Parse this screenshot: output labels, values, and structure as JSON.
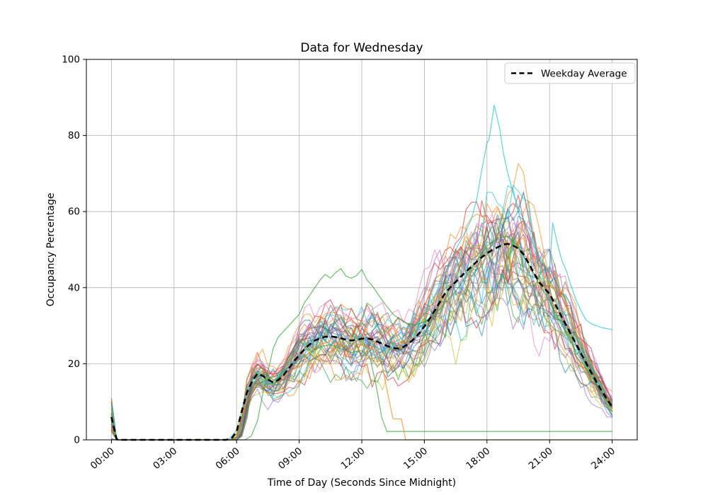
{
  "figure": {
    "title": "Data for Wednesday",
    "xlabel": "Time of Day (Seconds Since Midnight)",
    "ylabel": "Occupancy Percentage",
    "legend_label": "Weekday Average",
    "background_color": "#ffffff",
    "grid_color": "#b0b0b0",
    "spine_color": "#000000",
    "text_color": "#000000"
  },
  "chart_data": {
    "type": "line",
    "title": "Data for Wednesday",
    "xlabel": "Time of Day (Seconds Since Midnight)",
    "ylabel": "Occupancy Percentage",
    "ylim": [
      0,
      100
    ],
    "xlim_hours": [
      -1.2,
      25.2
    ],
    "grid": true,
    "legend_position": "upper right",
    "x_tick_hours": [
      0,
      3,
      6,
      9,
      12,
      15,
      18,
      21,
      24
    ],
    "x_tick_labels": [
      "00:00",
      "03:00",
      "06:00",
      "09:00",
      "12:00",
      "15:00",
      "18:00",
      "21:00",
      "24:00"
    ],
    "y_ticks": [
      0,
      20,
      40,
      60,
      80,
      100
    ],
    "sample_interval_hours": 0.25,
    "average_series": {
      "name": "Weekday Average",
      "color": "#000000",
      "linestyle": "dashed",
      "linewidth": 2.6,
      "values": [
        6.0,
        0.2,
        0,
        0,
        0,
        0,
        0,
        0,
        0,
        0,
        0,
        0,
        0,
        0,
        0,
        0,
        0,
        0,
        0,
        0,
        0,
        0,
        0,
        0.3,
        2.2,
        7.5,
        12.5,
        15.5,
        17.4,
        16.8,
        15.8,
        15.1,
        15.7,
        17.0,
        18.8,
        20.6,
        22.3,
        23.8,
        25.1,
        26.1,
        26.7,
        27.1,
        27.2,
        27.0,
        26.7,
        26.3,
        26.1,
        26.3,
        26.6,
        26.7,
        26.4,
        25.8,
        25.2,
        24.6,
        24.1,
        24.0,
        24.4,
        25.3,
        26.5,
        28.0,
        29.8,
        31.8,
        34.0,
        36.3,
        38.6,
        40.1,
        41.5,
        42.9,
        44.2,
        45.5,
        46.8,
        48.0,
        49.0,
        49.9,
        50.6,
        51.3,
        51.5,
        51.1,
        50.3,
        48.8,
        46.4,
        43.8,
        41.5,
        39.8,
        38.4,
        35.8,
        33.2,
        30.6,
        28.0,
        25.4,
        22.8,
        20.2,
        17.6,
        15.2,
        12.9,
        10.7,
        8.6
      ]
    },
    "individual_series_style": {
      "alpha": 0.55,
      "width": 1.3
    },
    "generated_series": {
      "count": 42,
      "seed": 11,
      "scale_range": [
        0.78,
        1.22
      ],
      "noise": 1.0,
      "start_spike_max": 11
    },
    "special_series": [
      {
        "name": "midday-peak-45",
        "color": "#2ca02c",
        "keyframes": [
          [
            0,
            7
          ],
          [
            0.25,
            0
          ],
          [
            6.4,
            0
          ],
          [
            6.7,
            1
          ],
          [
            7,
            5
          ],
          [
            7.25,
            12
          ],
          [
            7.5,
            18
          ],
          [
            7.75,
            24
          ],
          [
            8,
            27
          ],
          [
            8.25,
            28.5
          ],
          [
            8.5,
            30
          ],
          [
            9,
            33
          ],
          [
            9.25,
            36
          ],
          [
            9.5,
            38
          ],
          [
            9.75,
            40
          ],
          [
            10,
            42
          ],
          [
            10.25,
            43.5
          ],
          [
            10.5,
            42.5
          ],
          [
            10.75,
            44
          ],
          [
            11,
            45
          ],
          [
            11.25,
            43
          ],
          [
            11.5,
            42.5
          ],
          [
            11.75,
            43.2
          ],
          [
            12,
            44.8
          ],
          [
            12.25,
            42
          ],
          [
            12.5,
            40.5
          ],
          [
            12.75,
            38.5
          ],
          [
            13,
            36.5
          ],
          [
            13.5,
            33
          ],
          [
            14,
            31
          ],
          [
            14.5,
            30
          ],
          [
            15,
            31
          ],
          [
            15.5,
            33
          ],
          [
            16,
            36
          ],
          [
            16.5,
            39
          ],
          [
            17,
            43
          ],
          [
            17.5,
            47
          ],
          [
            18,
            51
          ],
          [
            18.5,
            53
          ],
          [
            19,
            53.5
          ],
          [
            19.5,
            50.5
          ],
          [
            20,
            46
          ],
          [
            20.5,
            41
          ],
          [
            21,
            36.5
          ],
          [
            21.5,
            31
          ],
          [
            22,
            26
          ],
          [
            22.5,
            21
          ],
          [
            23,
            16.5
          ],
          [
            23.5,
            12.5
          ],
          [
            24,
            9.5
          ]
        ]
      },
      {
        "name": "dropout-flat-2",
        "color": "#2ca02c",
        "keyframes": [
          [
            0,
            5
          ],
          [
            0.25,
            0
          ],
          [
            5.7,
            0
          ],
          [
            6,
            1.5
          ],
          [
            6.5,
            10
          ],
          [
            7,
            14.5
          ],
          [
            7.5,
            16
          ],
          [
            8,
            17
          ],
          [
            8.5,
            19
          ],
          [
            9,
            21
          ],
          [
            9.5,
            23
          ],
          [
            10,
            24.5
          ],
          [
            10.5,
            25
          ],
          [
            11,
            24
          ],
          [
            11.5,
            23
          ],
          [
            12,
            23.5
          ],
          [
            12.4,
            21.5
          ],
          [
            12.7,
            14
          ],
          [
            12.95,
            6
          ],
          [
            13.2,
            2.2
          ],
          [
            24,
            2.2
          ]
        ]
      },
      {
        "name": "dropout-to-0-at-14",
        "color": "#ff7f0e",
        "keyframes": [
          [
            0,
            3
          ],
          [
            0.25,
            0
          ],
          [
            5.7,
            0
          ],
          [
            6,
            1.5
          ],
          [
            6.25,
            6
          ],
          [
            6.5,
            10
          ],
          [
            7,
            15
          ],
          [
            7.5,
            13.5
          ],
          [
            8,
            15.5
          ],
          [
            8.5,
            17.5
          ],
          [
            9,
            20
          ],
          [
            9.5,
            23
          ],
          [
            10,
            25
          ],
          [
            10.5,
            26
          ],
          [
            11,
            25
          ],
          [
            11.5,
            23.5
          ],
          [
            12,
            25
          ],
          [
            12.5,
            24
          ],
          [
            12.75,
            22.5
          ],
          [
            13,
            19
          ],
          [
            13.25,
            12
          ],
          [
            13.5,
            5.5
          ],
          [
            13.9,
            5.5
          ],
          [
            14.1,
            0
          ],
          [
            24,
            0
          ]
        ]
      },
      {
        "name": "evening-outlier-peak-88",
        "color": "#17becf",
        "keyframes": [
          [
            0,
            9.5
          ],
          [
            0.25,
            0
          ],
          [
            5.6,
            0
          ],
          [
            6,
            2.5
          ],
          [
            6.25,
            8
          ],
          [
            6.5,
            13
          ],
          [
            6.75,
            16
          ],
          [
            7,
            18
          ],
          [
            7.25,
            16
          ],
          [
            7.75,
            14.5
          ],
          [
            8,
            16.5
          ],
          [
            8.5,
            19
          ],
          [
            9,
            22
          ],
          [
            9.5,
            25.5
          ],
          [
            10,
            27
          ],
          [
            10.5,
            25
          ],
          [
            11,
            28
          ],
          [
            11.5,
            26
          ],
          [
            12,
            27.5
          ],
          [
            12.5,
            25
          ],
          [
            13,
            23.5
          ],
          [
            13.5,
            25.5
          ],
          [
            14,
            27
          ],
          [
            14.5,
            29.5
          ],
          [
            15,
            33
          ],
          [
            15.5,
            38
          ],
          [
            16,
            44
          ],
          [
            16.5,
            50
          ],
          [
            17,
            55
          ],
          [
            17.25,
            58
          ],
          [
            17.5,
            63
          ],
          [
            17.75,
            71
          ],
          [
            18,
            78
          ],
          [
            18.1,
            79
          ],
          [
            18.35,
            88
          ],
          [
            18.6,
            82
          ],
          [
            18.8,
            75
          ],
          [
            19,
            70
          ],
          [
            19.25,
            65
          ],
          [
            19.5,
            61
          ],
          [
            19.75,
            58
          ],
          [
            20,
            54
          ],
          [
            20.25,
            51
          ],
          [
            20.5,
            48.5
          ],
          [
            20.75,
            46
          ],
          [
            21,
            44
          ],
          [
            21.15,
            57
          ],
          [
            21.4,
            51
          ],
          [
            21.6,
            47
          ],
          [
            21.8,
            44.5
          ],
          [
            22,
            41
          ],
          [
            22.25,
            37
          ],
          [
            22.5,
            34
          ],
          [
            22.75,
            31.5
          ],
          [
            23,
            30.5
          ],
          [
            23.5,
            29.5
          ],
          [
            24,
            29
          ]
        ]
      }
    ],
    "palette": [
      "#1f77b4",
      "#ff7f0e",
      "#2ca02c",
      "#d62728",
      "#9467bd",
      "#8c564b",
      "#e377c2",
      "#7f7f7f",
      "#bcbd22",
      "#17becf"
    ]
  }
}
